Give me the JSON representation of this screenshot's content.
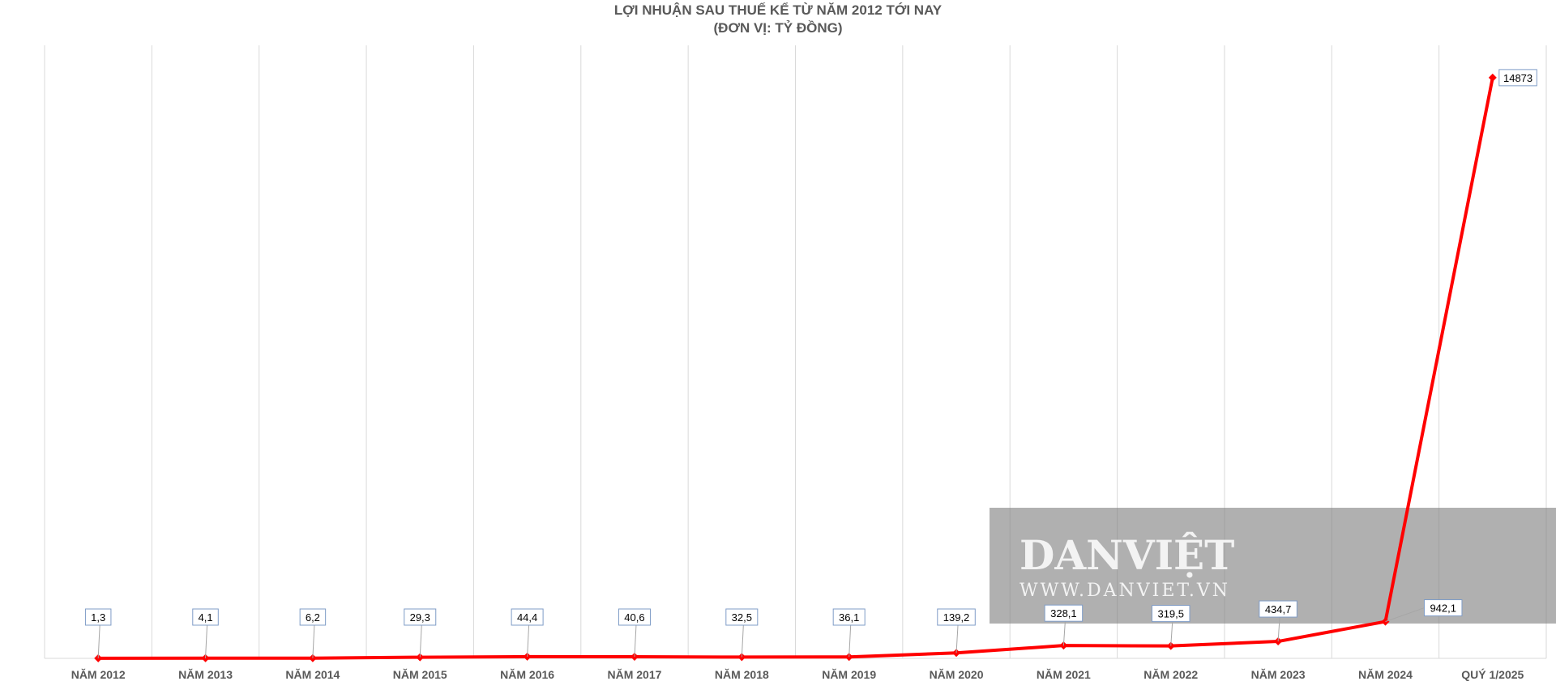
{
  "chart_data": {
    "type": "line",
    "title": "LỢI NHUẬN SAU THUẾ KỂ TỪ NĂM 2012 TỚI NAY",
    "subtitle": "(ĐƠN VỊ: TỶ ĐỒNG)",
    "categories": [
      "NĂM 2012",
      "NĂM 2013",
      "NĂM 2014",
      "NĂM 2015",
      "NĂM 2016",
      "NĂM 2017",
      "NĂM 2018",
      "NĂM 2019",
      "NĂM 2020",
      "NĂM 2021",
      "NĂM 2022",
      "NĂM 2023",
      "NĂM 2024",
      "QUÝ 1/2025"
    ],
    "series": [
      {
        "values": [
          1.3,
          4.1,
          6.2,
          29.3,
          44.4,
          40.6,
          32.5,
          36.1,
          139.2,
          328.1,
          319.5,
          434.7,
          942.1,
          14873
        ],
        "data_labels": [
          "1,3",
          "4,1",
          "6,2",
          "29,3",
          "44,4",
          "40,6",
          "32,5",
          "36,1",
          "139,2",
          "328,1",
          "319,5",
          "434,7",
          "942,1",
          "14873"
        ],
        "color": "#ff0000"
      }
    ],
    "ylim": [
      0,
      15700
    ],
    "grid": "vertical",
    "legend": "none"
  },
  "watermark": {
    "brand": "DANVIỆT",
    "url": "WWW.DANVIET.VN"
  }
}
